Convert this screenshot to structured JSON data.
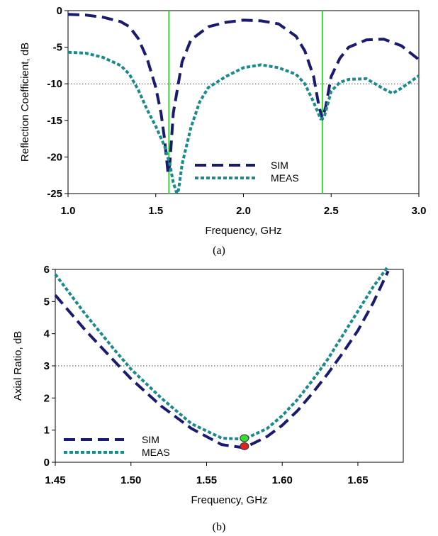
{
  "chart_data": [
    {
      "type": "line",
      "caption": "(a)",
      "xlabel": "Frequency, GHz",
      "ylabel": "Reflection Coefficient, dB",
      "xlim": [
        1.0,
        3.0
      ],
      "ylim": [
        -25,
        0
      ],
      "xticks": [
        "1.0",
        "1.5",
        "2.0",
        "2.5",
        "3.0"
      ],
      "yticks": [
        "0",
        "-5",
        "-10",
        "-15",
        "-20",
        "-25"
      ],
      "reference_line_y": -10,
      "marker_lines_x": [
        1.575,
        2.45
      ],
      "marker_line_color": "#33dd33",
      "legend_position": "bottom-center",
      "series": [
        {
          "name": "SIM",
          "color": "#1a1a6e",
          "style": "dashed",
          "x": [
            1.0,
            1.1,
            1.2,
            1.3,
            1.35,
            1.4,
            1.45,
            1.5,
            1.53,
            1.55,
            1.57,
            1.58,
            1.6,
            1.65,
            1.7,
            1.8,
            1.9,
            2.0,
            2.1,
            2.2,
            2.3,
            2.35,
            2.4,
            2.43,
            2.45,
            2.47,
            2.5,
            2.55,
            2.6,
            2.7,
            2.8,
            2.9,
            3.0
          ],
          "y": [
            -0.5,
            -0.6,
            -0.9,
            -1.5,
            -2.2,
            -3.8,
            -6.5,
            -10.5,
            -14,
            -17.5,
            -22.2,
            -21,
            -14,
            -7,
            -4,
            -2.2,
            -1.6,
            -1.3,
            -1.4,
            -1.8,
            -3.5,
            -5.5,
            -9,
            -13,
            -14.8,
            -13,
            -9,
            -6.5,
            -5,
            -4,
            -3.9,
            -4.8,
            -6.7
          ]
        },
        {
          "name": "MEAS",
          "color": "#1a8a8a",
          "style": "dotted",
          "x": [
            1.0,
            1.1,
            1.2,
            1.3,
            1.35,
            1.4,
            1.45,
            1.5,
            1.55,
            1.58,
            1.6,
            1.62,
            1.63,
            1.65,
            1.7,
            1.75,
            1.8,
            1.9,
            2.0,
            2.1,
            2.2,
            2.3,
            2.35,
            2.4,
            2.44,
            2.46,
            2.5,
            2.55,
            2.6,
            2.7,
            2.8,
            2.85,
            2.9,
            3.0
          ],
          "y": [
            -5.7,
            -5.8,
            -6.4,
            -7.5,
            -8.7,
            -10.8,
            -13.5,
            -15.8,
            -18.5,
            -21,
            -23.5,
            -25,
            -24.5,
            -21,
            -16,
            -12.5,
            -10.5,
            -9,
            -7.8,
            -7.4,
            -7.8,
            -8.7,
            -10,
            -12.5,
            -14.8,
            -14.6,
            -11,
            -9.8,
            -9.4,
            -9.3,
            -10.7,
            -11.3,
            -10.6,
            -8.9
          ]
        }
      ]
    },
    {
      "type": "line",
      "caption": "(b)",
      "xlabel": "Frequency, GHz",
      "ylabel": "Axial Ratio, dB",
      "xlim": [
        1.45,
        1.68
      ],
      "ylim": [
        0,
        6
      ],
      "xticks": [
        "1.45",
        "1.50",
        "1.55",
        "1.60",
        "1.65"
      ],
      "yticks": [
        "0",
        "1",
        "2",
        "3",
        "4",
        "5",
        "6"
      ],
      "reference_line_y": 3,
      "legend_position": "bottom-left",
      "markers": [
        {
          "x": 1.575,
          "y": 0.75,
          "color": "#33dd33"
        },
        {
          "x": 1.575,
          "y": 0.5,
          "color": "#dd2222"
        }
      ],
      "series": [
        {
          "name": "SIM",
          "color": "#1a1a6e",
          "style": "dashed",
          "x": [
            1.45,
            1.47,
            1.49,
            1.5,
            1.52,
            1.54,
            1.56,
            1.575,
            1.59,
            1.6,
            1.61,
            1.62,
            1.63,
            1.64,
            1.65,
            1.66,
            1.67
          ],
          "y": [
            5.2,
            4.1,
            3.1,
            2.6,
            1.75,
            1.05,
            0.55,
            0.45,
            0.8,
            1.15,
            1.6,
            2.15,
            2.75,
            3.4,
            4.1,
            4.95,
            5.95
          ]
        },
        {
          "name": "MEAS",
          "color": "#1a8a8a",
          "style": "dotted",
          "x": [
            1.45,
            1.47,
            1.49,
            1.5,
            1.52,
            1.54,
            1.56,
            1.575,
            1.59,
            1.6,
            1.61,
            1.62,
            1.63,
            1.64,
            1.65,
            1.66,
            1.67
          ],
          "y": [
            5.85,
            4.6,
            3.45,
            2.9,
            2.0,
            1.2,
            0.75,
            0.72,
            1.05,
            1.45,
            1.95,
            2.55,
            3.2,
            3.95,
            4.7,
            5.45,
            6.1
          ]
        }
      ]
    }
  ]
}
